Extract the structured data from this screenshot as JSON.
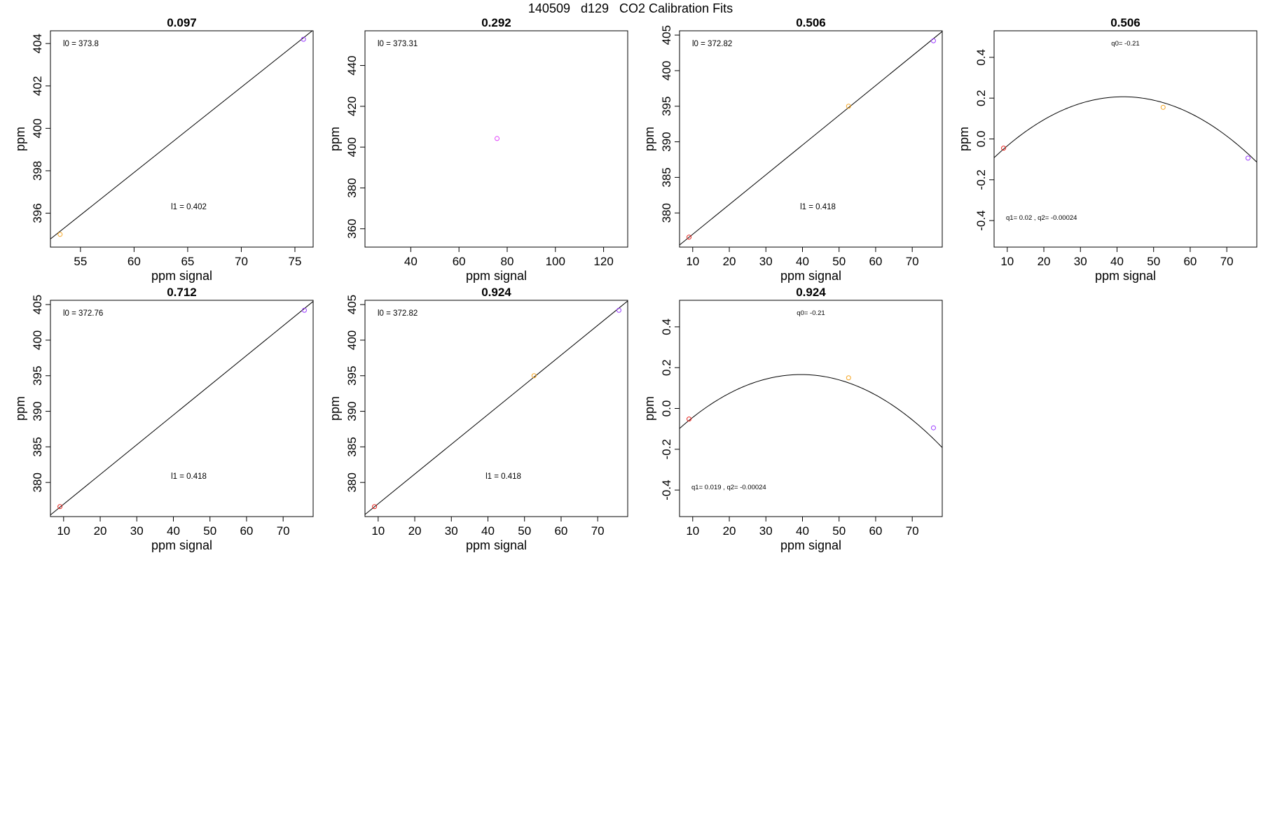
{
  "suptitle": "140509   d129   CO2 Calibration Fits",
  "colors": {
    "red": "#e8251f",
    "orange": "#f5a623",
    "purple": "#9b3dff",
    "magenta": "#e040fb",
    "line": "#000000"
  },
  "chart_data": [
    {
      "type": "scatter",
      "title": "0.097",
      "xlabel": "ppm signal",
      "ylabel": "ppm",
      "xlim": [
        52.2,
        76.7
      ],
      "ylim": [
        394.4,
        404.6
      ],
      "xticks": [
        55,
        60,
        65,
        70,
        75
      ],
      "yticks": [
        396,
        398,
        400,
        402,
        404
      ],
      "points": [
        {
          "x": 53.1,
          "y": 395.0,
          "color": "orange"
        },
        {
          "x": 75.8,
          "y": 404.2,
          "color": "purple"
        }
      ],
      "fit": {
        "kind": "linear",
        "intercept": 373.8,
        "slope": 0.402
      },
      "annotations": [
        "l0 =  373.8",
        "l1 =  0.402"
      ]
    },
    {
      "type": "scatter",
      "title": "0.292",
      "xlabel": "ppm signal",
      "ylabel": "ppm",
      "xlim": [
        21,
        130
      ],
      "ylim": [
        351,
        457
      ],
      "xticks": [
        40,
        60,
        80,
        100,
        120
      ],
      "yticks": [
        360,
        380,
        400,
        420,
        440
      ],
      "points": [
        {
          "x": 75.8,
          "y": 404.2,
          "color": "magenta"
        }
      ],
      "fit": null,
      "annotations": [
        "l0 =  373.31"
      ]
    },
    {
      "type": "scatter",
      "title": "0.506",
      "xlabel": "ppm signal",
      "ylabel": "ppm",
      "xlim": [
        6.4,
        78.2
      ],
      "ylim": [
        375.2,
        405.6
      ],
      "xticks": [
        10,
        20,
        30,
        40,
        50,
        60,
        70
      ],
      "yticks": [
        380,
        385,
        390,
        395,
        400,
        405
      ],
      "points": [
        {
          "x": 9.0,
          "y": 376.6,
          "color": "red"
        },
        {
          "x": 52.6,
          "y": 395.0,
          "color": "orange"
        },
        {
          "x": 75.8,
          "y": 404.2,
          "color": "purple"
        }
      ],
      "fit": {
        "kind": "linear",
        "intercept": 372.82,
        "slope": 0.418
      },
      "annotations": [
        "l0 =  372.82",
        "l1 =  0.418"
      ]
    },
    {
      "type": "scatter",
      "title": "0.506",
      "xlabel": "ppm signal",
      "ylabel": "ppm",
      "xlim": [
        6.4,
        78.2
      ],
      "ylim": [
        -0.53,
        0.53
      ],
      "xticks": [
        10,
        20,
        30,
        40,
        50,
        60,
        70
      ],
      "yticks": [
        -0.4,
        -0.2,
        0.0,
        0.2,
        0.4
      ],
      "points": [
        {
          "x": 9.0,
          "y": -0.045,
          "color": "red"
        },
        {
          "x": 52.6,
          "y": 0.155,
          "color": "orange"
        },
        {
          "x": 75.8,
          "y": -0.094,
          "color": "purple"
        }
      ],
      "fit": {
        "kind": "quadratic",
        "q0": -0.21,
        "q1": 0.02,
        "q2": -0.00024
      },
      "annotations": [
        "q0= -0.21",
        "q1= 0.02 , q2= -0.00024"
      ]
    },
    {
      "type": "scatter",
      "title": "0.712",
      "xlabel": "ppm signal",
      "ylabel": "ppm",
      "xlim": [
        6.4,
        78.2
      ],
      "ylim": [
        375.2,
        405.6
      ],
      "xticks": [
        10,
        20,
        30,
        40,
        50,
        60,
        70
      ],
      "yticks": [
        380,
        385,
        390,
        395,
        400,
        405
      ],
      "points": [
        {
          "x": 9.0,
          "y": 376.6,
          "color": "red"
        },
        {
          "x": 75.8,
          "y": 404.2,
          "color": "purple"
        }
      ],
      "fit": {
        "kind": "linear",
        "intercept": 372.76,
        "slope": 0.418
      },
      "annotations": [
        "l0 =  372.76",
        "l1 =  0.418"
      ]
    },
    {
      "type": "scatter",
      "title": "0.924",
      "xlabel": "ppm signal",
      "ylabel": "ppm",
      "xlim": [
        6.4,
        78.2
      ],
      "ylim": [
        375.2,
        405.6
      ],
      "xticks": [
        10,
        20,
        30,
        40,
        50,
        60,
        70
      ],
      "yticks": [
        380,
        385,
        390,
        395,
        400,
        405
      ],
      "points": [
        {
          "x": 9.0,
          "y": 376.6,
          "color": "red"
        },
        {
          "x": 52.6,
          "y": 395.0,
          "color": "orange"
        },
        {
          "x": 75.8,
          "y": 404.2,
          "color": "purple"
        }
      ],
      "fit": {
        "kind": "linear",
        "intercept": 372.82,
        "slope": 0.418
      },
      "annotations": [
        "l0 =  372.82",
        "l1 =  0.418"
      ]
    },
    {
      "type": "scatter",
      "title": "0.924",
      "xlabel": "ppm signal",
      "ylabel": "ppm",
      "xlim": [
        6.4,
        78.2
      ],
      "ylim": [
        -0.53,
        0.53
      ],
      "xticks": [
        10,
        20,
        30,
        40,
        50,
        60,
        70
      ],
      "yticks": [
        -0.4,
        -0.2,
        0.0,
        0.2,
        0.4
      ],
      "points": [
        {
          "x": 9.0,
          "y": -0.052,
          "color": "red"
        },
        {
          "x": 52.6,
          "y": 0.15,
          "color": "orange"
        },
        {
          "x": 75.8,
          "y": -0.095,
          "color": "purple"
        }
      ],
      "fit": {
        "kind": "quadratic",
        "q0": -0.21,
        "q1": 0.019,
        "q2": -0.00024
      },
      "annotations": [
        "q0= -0.21",
        "q1= 0.019 , q2= -0.00024"
      ]
    }
  ]
}
